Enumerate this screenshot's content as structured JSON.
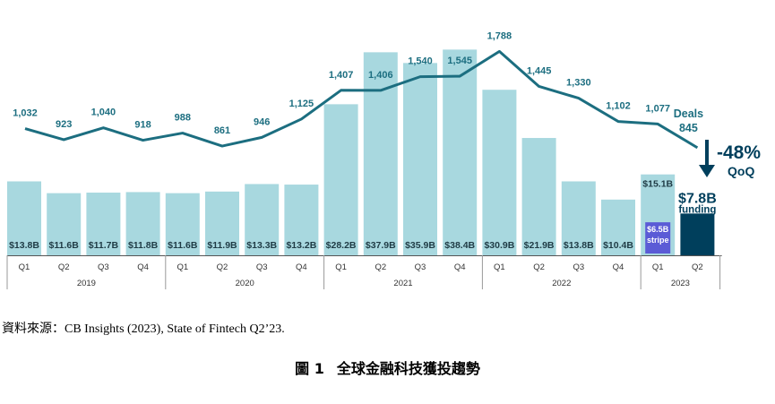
{
  "chart_data": {
    "type": "bar",
    "categories": [
      "Q1",
      "Q2",
      "Q3",
      "Q4",
      "Q1",
      "Q2",
      "Q3",
      "Q4",
      "Q1",
      "Q2",
      "Q3",
      "Q4",
      "Q1",
      "Q2",
      "Q3",
      "Q4",
      "Q1",
      "Q2"
    ],
    "years": [
      {
        "label": "2019",
        "span": 4
      },
      {
        "label": "2020",
        "span": 4
      },
      {
        "label": "2021",
        "span": 4
      },
      {
        "label": "2022",
        "span": 4
      },
      {
        "label": "2023",
        "span": 2
      }
    ],
    "series": [
      {
        "values": [
          13.8,
          11.6,
          11.7,
          11.8,
          11.6,
          11.9,
          13.3,
          13.2,
          28.2,
          37.9,
          35.9,
          38.4,
          30.9,
          21.9,
          13.8,
          10.4,
          15.1,
          7.8
        ],
        "labels": [
          "$13.8B",
          "$11.6B",
          "$11.7B",
          "$11.8B",
          "$11.6B",
          "$11.9B",
          "$13.3B",
          "$13.2B",
          "$28.2B",
          "$37.9B",
          "$35.9B",
          "$38.4B",
          "$30.9B",
          "$21.9B",
          "$13.8B",
          "$10.4B",
          "$15.1B",
          "$7.8B"
        ]
      },
      {
        "values": [
          1032,
          923,
          1040,
          918,
          988,
          861,
          946,
          1125,
          1407,
          1406,
          1540,
          1545,
          1788,
          1445,
          1330,
          1102,
          1077,
          845
        ],
        "labels": [
          "1,032",
          "923",
          "1,040",
          "918",
          "988",
          "861",
          "946",
          "1,125",
          "1,407",
          "1,406",
          "1,540",
          "1,545",
          "1,788",
          "1,445",
          "1,330",
          "1,102",
          "1,077",
          ""
        ]
      }
    ],
    "stripe_bar": {
      "value": 6.5,
      "label": "$6.5B",
      "sublabel": "stripe"
    },
    "deals_label": "Deals",
    "deals_value": "845",
    "funding_label": "funding",
    "qoq_change": "-48%",
    "qoq_label": "QoQ",
    "colors": {
      "bar": "#a8d8df",
      "bar_highlight": "#003f5c",
      "stripe": "#5b5bd6",
      "line": "#1c6e80",
      "axis": "#555555",
      "highlight_text": "#003f5c"
    },
    "ylim": [
      0,
      40
    ],
    "line_ylim": [
      800,
      1800
    ]
  },
  "source": "資料來源：CB Insights (2023), State of Fintech Q2’23.",
  "caption": {
    "number": "圖 1",
    "title": "全球金融科技獲投趨勢"
  }
}
